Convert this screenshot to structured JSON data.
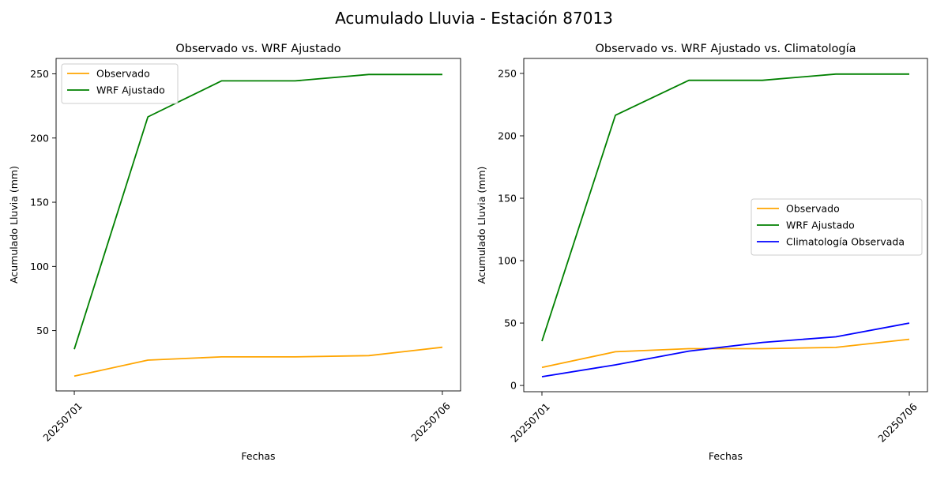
{
  "figure": {
    "suptitle": "Acumulado Lluvia - Estación 87013"
  },
  "colors": {
    "observado": "#ffa500",
    "wrf": "#008000",
    "climatologia": "#0000ff"
  },
  "chart_data": [
    {
      "type": "line",
      "title": "Observado vs. WRF Ajustado",
      "xlabel": "Fechas",
      "ylabel": "Acumulado Lluvia (mm)",
      "x": [
        20250701,
        20250702,
        20250703,
        20250704,
        20250705,
        20250706
      ],
      "xticks": [
        "20250701",
        "20250706"
      ],
      "yticks": [
        50,
        100,
        150,
        200,
        250
      ],
      "ylim": [
        3,
        262
      ],
      "grid": false,
      "legend": "upper-left",
      "series": [
        {
          "name": "Observado",
          "color": "#ffa500",
          "values": [
            14.5,
            27,
            29.5,
            29.5,
            30.5,
            37
          ]
        },
        {
          "name": "WRF Ajustado",
          "color": "#008000",
          "values": [
            35.5,
            216.5,
            244.5,
            244.5,
            249.5,
            249.5
          ]
        }
      ]
    },
    {
      "type": "line",
      "title": "Observado vs. WRF Ajustado vs. Climatología",
      "xlabel": "Fechas",
      "ylabel": "Acumulado Lluvia (mm)",
      "x": [
        20250701,
        20250702,
        20250703,
        20250704,
        20250705,
        20250706
      ],
      "xticks": [
        "20250701",
        "20250706"
      ],
      "yticks": [
        0,
        50,
        100,
        150,
        200,
        250
      ],
      "ylim": [
        -5,
        262
      ],
      "grid": false,
      "legend": "center-right",
      "series": [
        {
          "name": "Observado",
          "color": "#ffa500",
          "values": [
            14.5,
            27,
            29.5,
            29.5,
            30.5,
            37
          ]
        },
        {
          "name": "WRF Ajustado",
          "color": "#008000",
          "values": [
            35.5,
            216.5,
            244.5,
            244.5,
            249.5,
            249.5
          ]
        },
        {
          "name": "Climatología Observada",
          "color": "#0000ff",
          "values": [
            7,
            16.5,
            27.5,
            34.5,
            39,
            50
          ]
        }
      ]
    }
  ]
}
